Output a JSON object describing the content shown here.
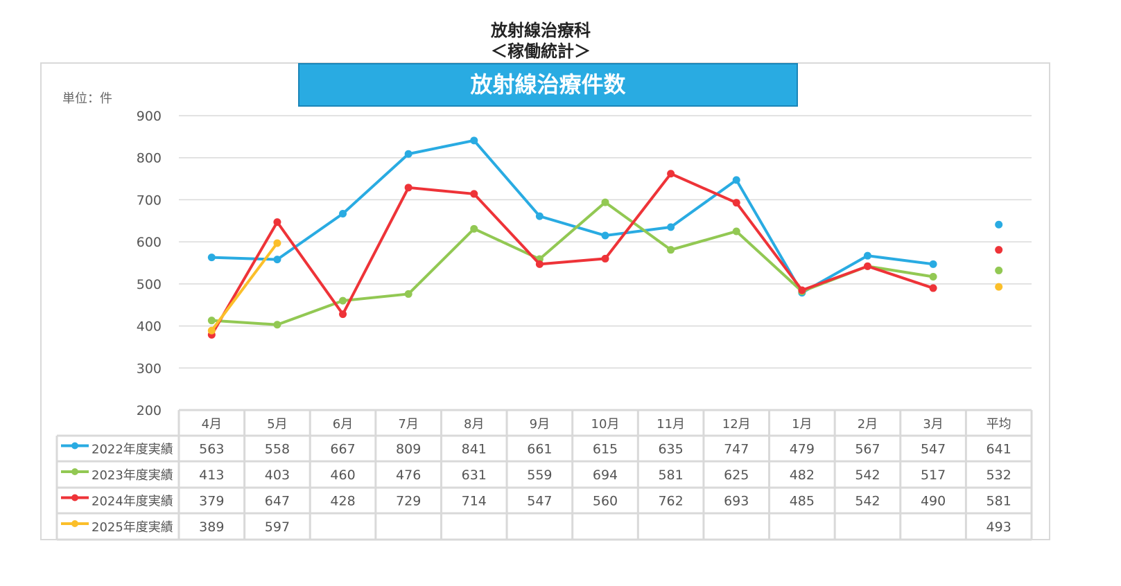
{
  "page_title": "放射線治療科",
  "page_subtitle": "＜稼働統計＞",
  "chart_data": {
    "type": "line",
    "title": "放射線治療件数",
    "unit_label": "単位：件",
    "categories": [
      "4月",
      "5月",
      "6月",
      "7月",
      "8月",
      "9月",
      "10月",
      "11月",
      "12月",
      "1月",
      "2月",
      "3月"
    ],
    "average_label": "平均",
    "ylim": [
      200,
      900
    ],
    "yticks": [
      200,
      300,
      400,
      500,
      600,
      700,
      800,
      900
    ],
    "grid": true,
    "legend_placement": "data-table",
    "series": [
      {
        "name": "2022年度実績",
        "color": "#29ABE2",
        "values": [
          563,
          558,
          667,
          809,
          841,
          661,
          615,
          635,
          747,
          479,
          567,
          547
        ],
        "average": 641
      },
      {
        "name": "2023年度実績",
        "color": "#92C853",
        "values": [
          413,
          403,
          460,
          476,
          631,
          559,
          694,
          581,
          625,
          482,
          542,
          517
        ],
        "average": 532
      },
      {
        "name": "2024年度実績",
        "color": "#EE3338",
        "values": [
          379,
          647,
          428,
          729,
          714,
          547,
          560,
          762,
          693,
          485,
          542,
          490
        ],
        "average": 581
      },
      {
        "name": "2025年度実績",
        "color": "#FBBF2A",
        "values": [
          389,
          597,
          null,
          null,
          null,
          null,
          null,
          null,
          null,
          null,
          null,
          null
        ],
        "average": 493
      }
    ]
  }
}
